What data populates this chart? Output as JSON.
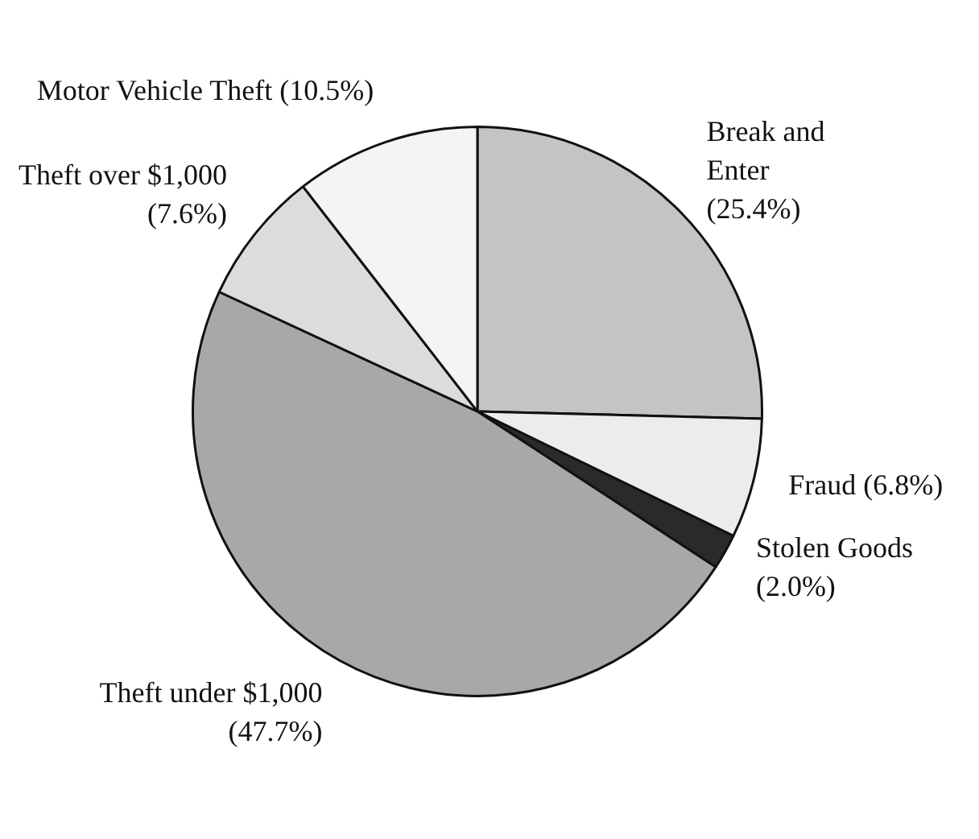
{
  "chart_data": {
    "type": "pie",
    "categories": [
      "Break and Enter",
      "Fraud",
      "Stolen Goods",
      "Theft under $1,000",
      "Theft over $1,000",
      "Motor Vehicle Theft"
    ],
    "values": [
      25.4,
      6.8,
      2.0,
      47.7,
      7.6,
      10.5
    ],
    "colors": [
      "#c4c4c4",
      "#ececec",
      "#2a2a2a",
      "#a8a8a8",
      "#dcdcdc",
      "#f4f4f4"
    ],
    "value_labels": [
      "(25.4%)",
      "(6.8%)",
      "(2.0%)",
      "(47.7%)",
      "(7.6%)",
      "(10.5%)"
    ],
    "legend": false
  }
}
